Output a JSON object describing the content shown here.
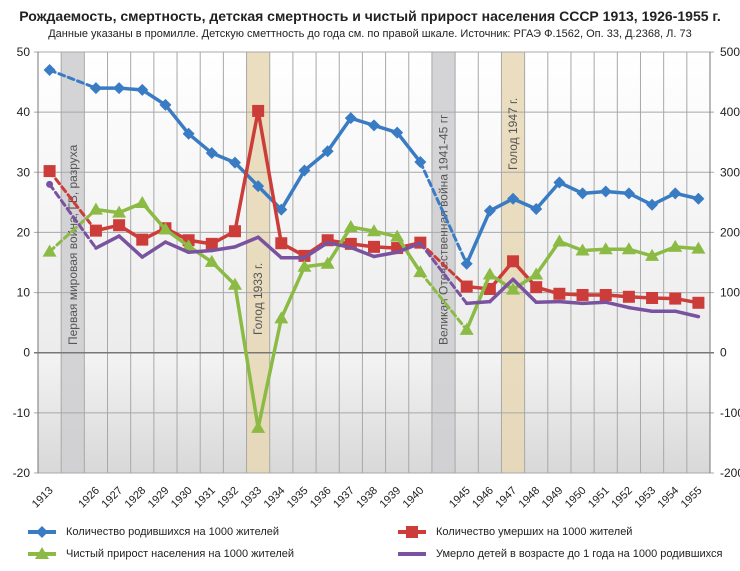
{
  "chart_data": {
    "type": "line",
    "title": "Рождаемость, смертность, детская смертность и чистый прирост населения СССР 1913, 1926-1955 г.",
    "subtitle": "Данные указаны в промилле. Детскую сметтность до года см. по правой шкале. Источник: РГАЭ Ф.1562, Оп. 33, Д.2368, Л. 73",
    "categories": [
      "1913",
      "",
      "1926",
      "1927",
      "1928",
      "1929",
      "1930",
      "1931",
      "1932",
      "1933",
      "1934",
      "1935",
      "1936",
      "1937",
      "1938",
      "1939",
      "1940",
      "",
      "1945",
      "1946",
      "1947",
      "1948",
      "1949",
      "1950",
      "1951",
      "1952",
      "1953",
      "1954",
      "1955"
    ],
    "ylim": [
      -20,
      50
    ],
    "y2lim": [
      -200,
      500
    ],
    "yticks": [
      50,
      40,
      30,
      20,
      10,
      0,
      -10,
      -20
    ],
    "y2ticks": [
      500,
      400,
      300,
      200,
      100,
      0,
      -100,
      -200
    ],
    "grid": true,
    "legend_position": "bottom",
    "series": [
      {
        "name": "Количество родившихся на 1000 жителей",
        "color": "#3a7cc3",
        "marker": "diamond",
        "axis": "left",
        "values": [
          47,
          null,
          44,
          44,
          43.7,
          41.2,
          36.4,
          33.2,
          31.6,
          27.7,
          23.8,
          30.3,
          33.5,
          39,
          37.8,
          36.6,
          31.7,
          null,
          14.8,
          23.6,
          25.6,
          23.9,
          28.3,
          26.5,
          26.8,
          26.5,
          24.6,
          26.5,
          25.6
        ]
      },
      {
        "name": "Количество умерших на 1000 жителей",
        "color": "#cc3d3a",
        "marker": "square",
        "axis": "left",
        "values": [
          30.2,
          null,
          20.3,
          21.2,
          18.8,
          20.7,
          18.7,
          18.1,
          20.2,
          40.2,
          18.2,
          16.1,
          18.7,
          18.1,
          17.6,
          17.4,
          18.3,
          null,
          11,
          10.6,
          15.2,
          10.9,
          9.8,
          9.6,
          9.6,
          9.3,
          9.1,
          9,
          8.3
        ]
      },
      {
        "name": "Чистый прирост населения на 1000 жителей",
        "color": "#8bbb44",
        "marker": "triangle",
        "axis": "left",
        "values": [
          16.8,
          null,
          23.8,
          23.3,
          24.9,
          20.5,
          17.7,
          15.1,
          11.3,
          -12.5,
          5.7,
          14.3,
          14.8,
          20.9,
          20.2,
          19.3,
          13.4,
          null,
          3.8,
          13,
          10.5,
          13,
          18.5,
          17,
          17.2,
          17.2,
          16.1,
          17.6,
          17.3
        ]
      },
      {
        "name": "Умерло детей в возрасте до 1 года на 1000 родившихся",
        "color": "#7a53a0",
        "marker": "none",
        "axis": "right",
        "values": [
          280,
          null,
          174,
          194,
          159,
          184,
          167,
          170,
          176,
          192,
          158,
          158,
          183,
          175,
          160,
          167,
          182,
          null,
          82,
          85,
          122,
          84,
          85,
          82,
          84,
          75,
          69,
          69,
          60
        ]
      }
    ],
    "dashed_gaps": [
      [
        "1913",
        "1926"
      ],
      [
        "1940",
        "1945"
      ]
    ],
    "annotations": [
      {
        "label": "Первая мировая война, ГВ, разруха",
        "slot": 1,
        "style": "gray"
      },
      {
        "label": "Голод 1933 г.",
        "slot": 9,
        "style": "tan"
      },
      {
        "label": "Великая Отечественная война 1941-45 гг",
        "slot": 17,
        "style": "gray"
      },
      {
        "label": "Голод 1947 г.",
        "slot": 20,
        "style": "tan"
      }
    ]
  }
}
